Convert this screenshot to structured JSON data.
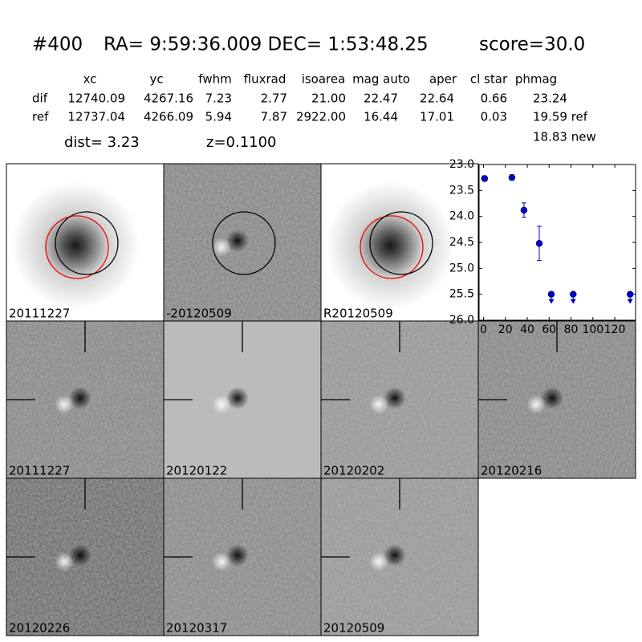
{
  "header": {
    "id": "#400",
    "coords": "RA= 9:59:36.009 DEC= 1:53:48.25",
    "score": "score=30.0"
  },
  "table": {
    "columns": [
      "xc",
      "yc",
      "fwhm",
      "fluxrad",
      "isoarea",
      "mag auto",
      "aper",
      "cl star",
      "phmag"
    ],
    "rows": [
      {
        "label": "dif",
        "cells": [
          "12740.09",
          "4267.16",
          "7.23",
          "2.77",
          "21.00",
          "22.47",
          "22.64",
          "0.66",
          "23.24"
        ]
      },
      {
        "label": "ref",
        "cells": [
          "12737.04",
          "4266.09",
          "5.94",
          "7.87",
          "2922.00",
          "16.44",
          "17.01",
          "0.03",
          "19.59 ref"
        ]
      }
    ],
    "extra": "18.83 new",
    "dist": "dist=  3.23",
    "z": "z=0.1100"
  },
  "stamps": [
    "20111227",
    "-20120509",
    "R20120509",
    "20111227",
    "20120122",
    "20120202",
    "20120216",
    "20120226",
    "20120317",
    "20120509"
  ],
  "chart_data": {
    "type": "scatter",
    "color": "#0000cc",
    "xlim": [
      -4,
      139
    ],
    "xticks": [
      0,
      20,
      40,
      60,
      80,
      100,
      120
    ],
    "ylim": [
      26.0,
      23.0
    ],
    "yticks": [
      {
        "value": 23,
        "label": "23.0"
      },
      {
        "value": 23.5,
        "label": "23.5"
      },
      {
        "value": 24,
        "label": "24.0"
      },
      {
        "value": 24.5,
        "label": "24.5"
      },
      {
        "value": 25,
        "label": "25.0"
      },
      {
        "value": 25.5,
        "label": "25.5"
      },
      {
        "value": 26,
        "label": "26.0"
      }
    ],
    "detections": {
      "x": [
        1,
        26,
        37,
        51
      ],
      "values": [
        23.27,
        23.25,
        23.88,
        24.52
      ],
      "errors": [
        0.05,
        0.05,
        0.14,
        0.33
      ]
    },
    "upper_limits": {
      "x": [
        62,
        82,
        134
      ],
      "values": [
        25.5,
        25.5,
        25.5
      ]
    }
  }
}
